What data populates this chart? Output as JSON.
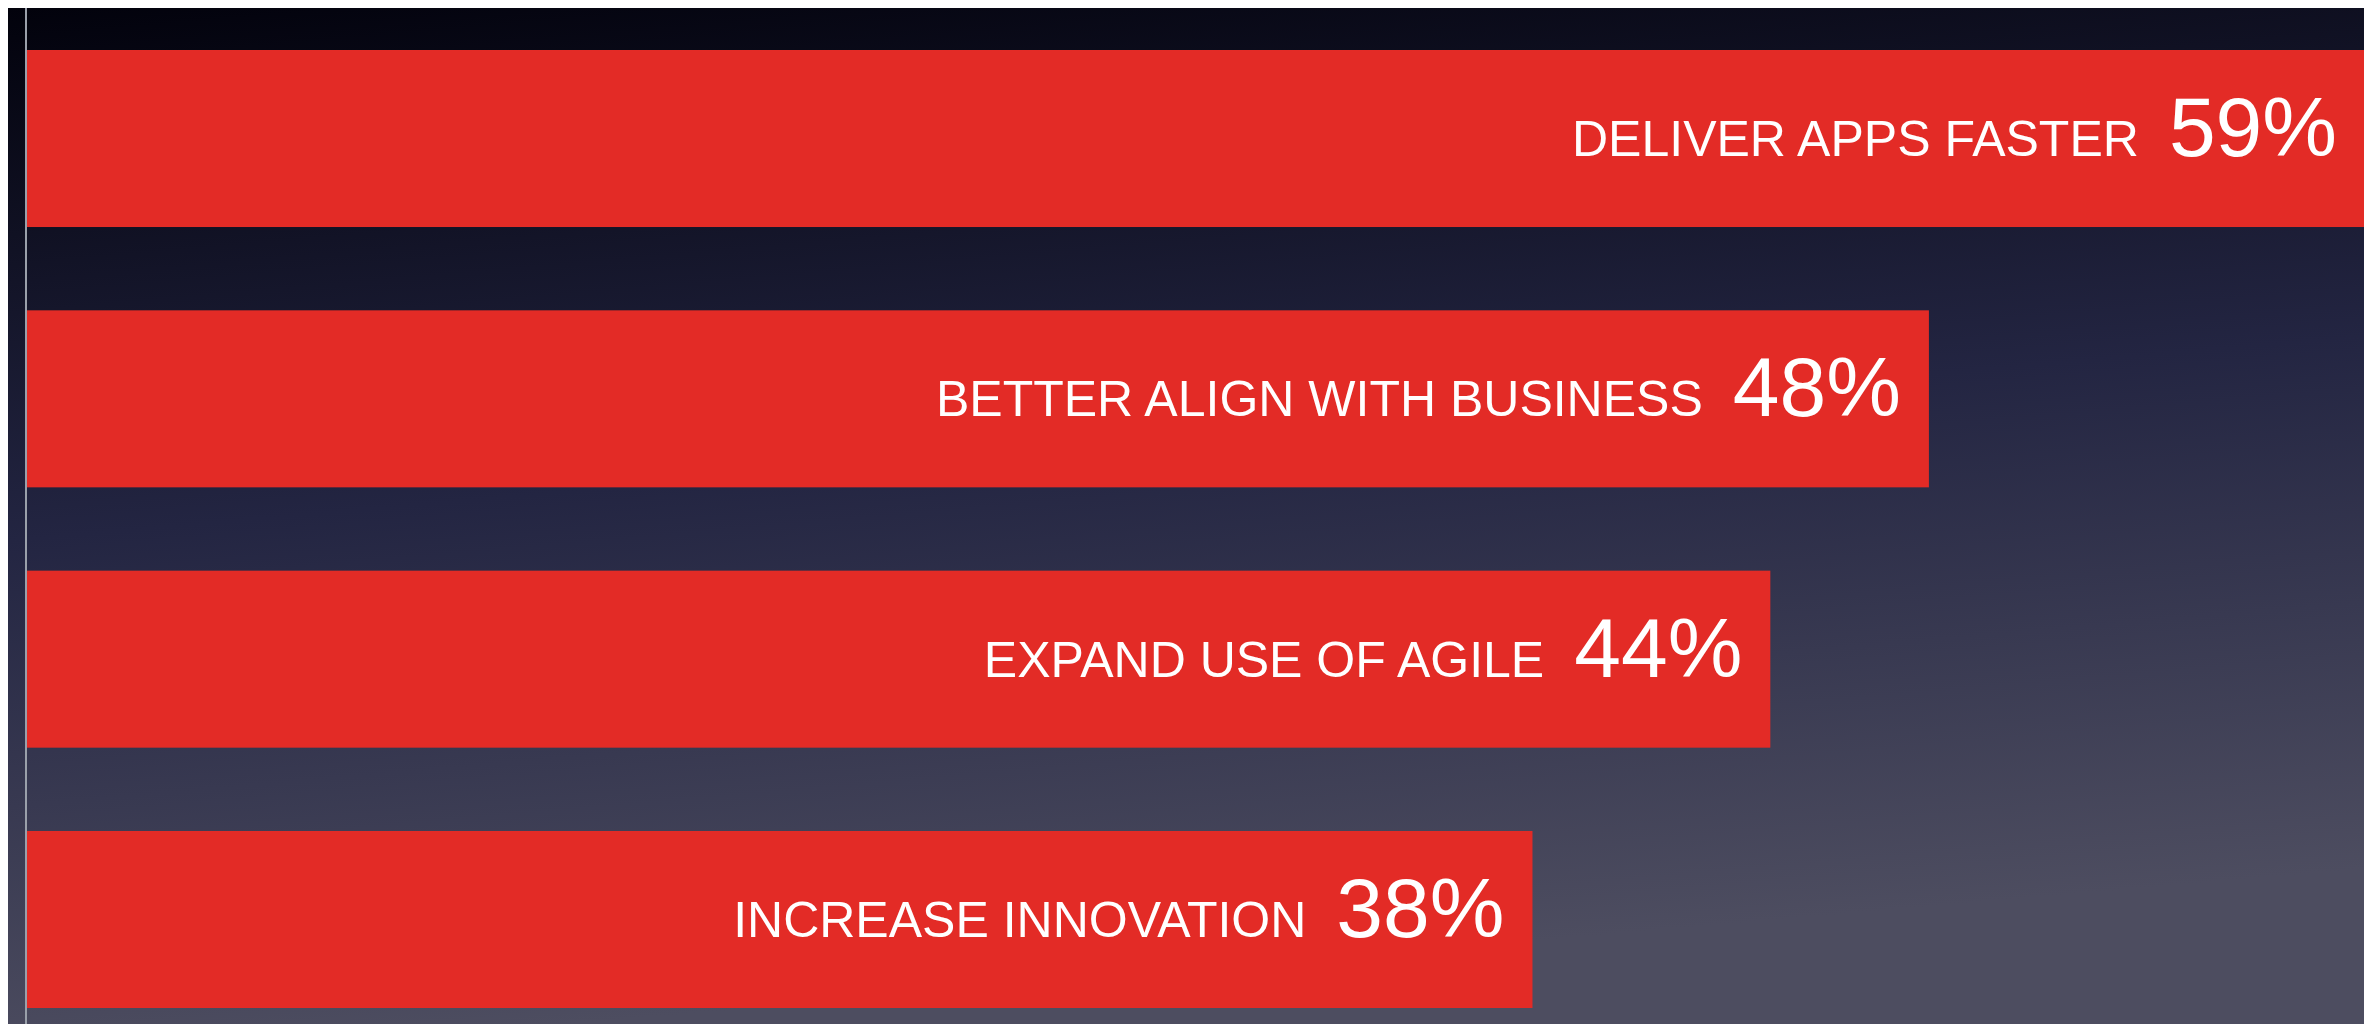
{
  "chart_data": {
    "type": "bar",
    "orientation": "horizontal",
    "categories": [
      "DELIVER APPS FASTER",
      "BETTER ALIGN WITH BUSINESS",
      "EXPAND USE OF AGILE",
      "INCREASE INNOVATION"
    ],
    "values": [
      59,
      48,
      44,
      38
    ],
    "value_labels": [
      "59%",
      "48%",
      "44%",
      "38%"
    ],
    "color": "#e32b26"
  }
}
